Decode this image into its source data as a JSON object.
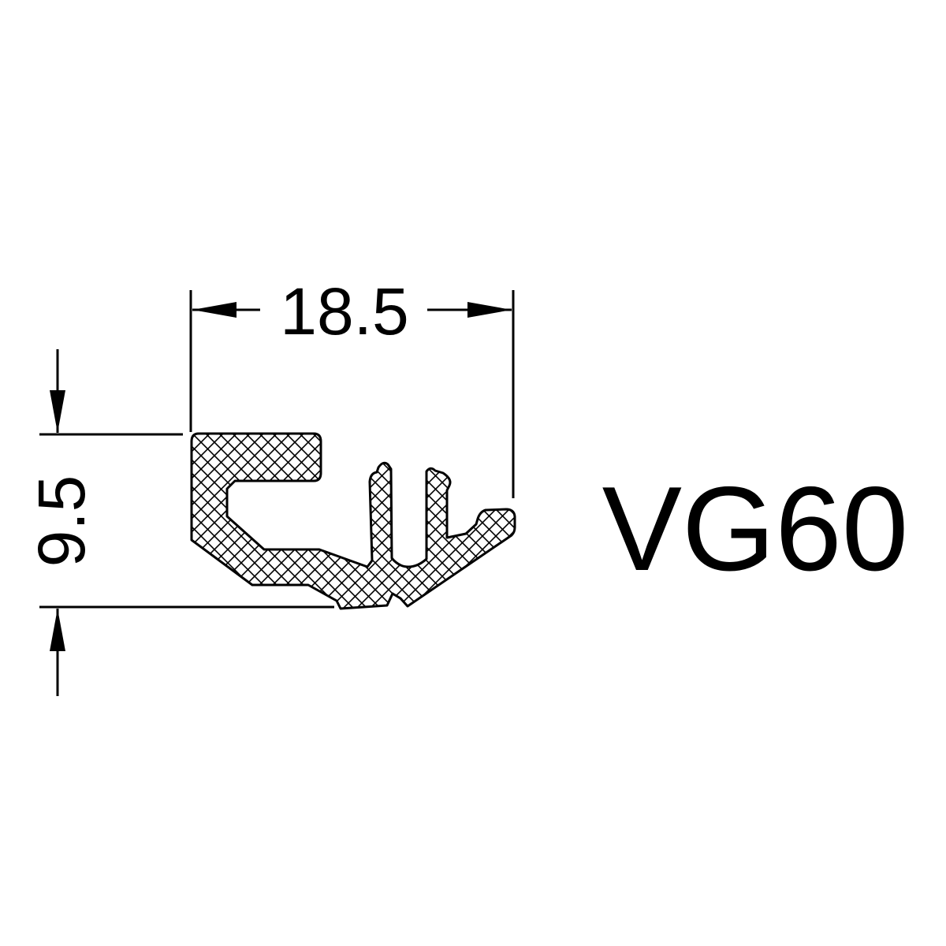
{
  "drawing": {
    "width_dimension": "18.5",
    "height_dimension": "9.5",
    "model_code": "VG60"
  },
  "colors": {
    "line": "#000000",
    "background": "#ffffff"
  }
}
